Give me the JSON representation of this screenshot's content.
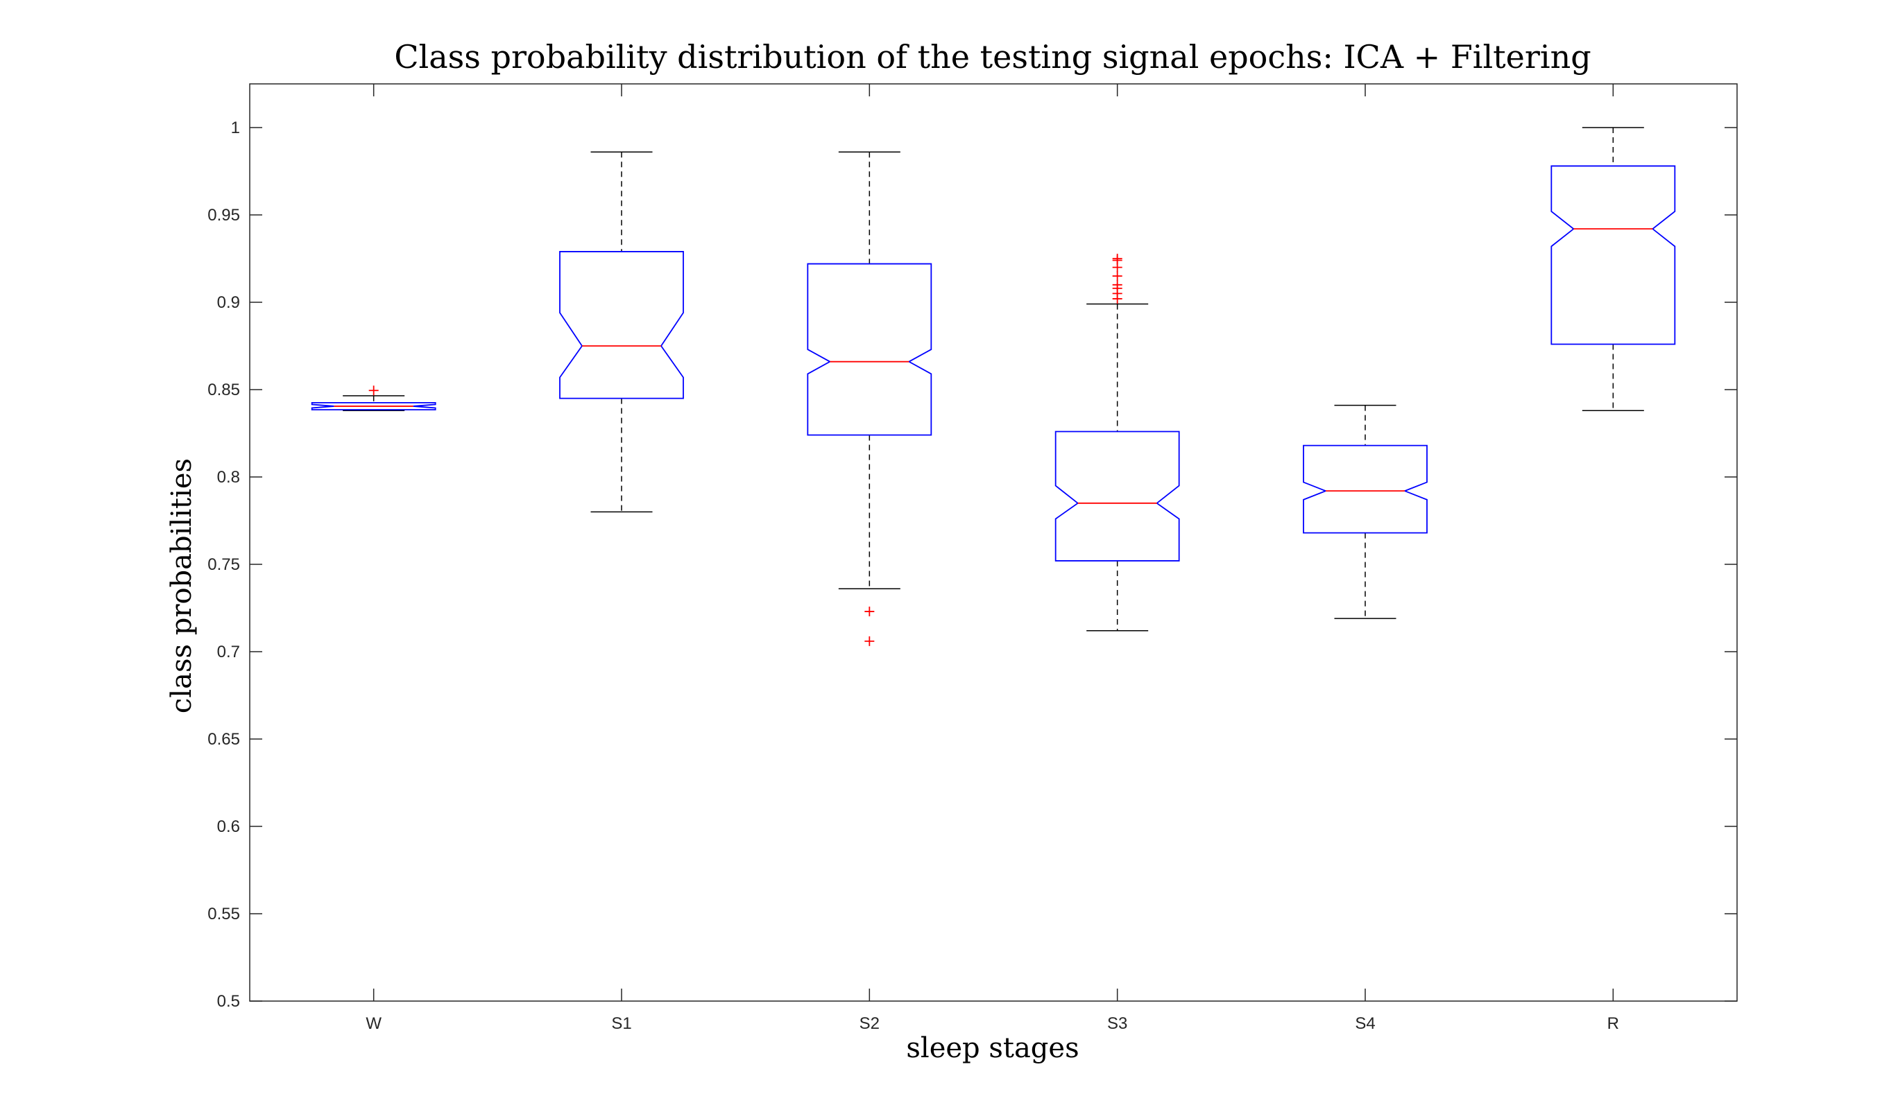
{
  "chart_data": {
    "type": "boxplot",
    "title": "Class probability distribution of the testing signal epochs: ICA + Filtering",
    "xlabel": "sleep stages",
    "ylabel": "class probabilities",
    "ylim": [
      0.5,
      1.025
    ],
    "yticks": [
      0.5,
      0.55,
      0.6,
      0.65,
      0.7,
      0.75,
      0.8,
      0.85,
      0.9,
      0.95,
      1
    ],
    "ytick_labels": [
      "0.5",
      "0.55",
      "0.6",
      "0.65",
      "0.7",
      "0.75",
      "0.8",
      "0.85",
      "0.9",
      "0.95",
      "1"
    ],
    "categories": [
      "W",
      "S1",
      "S2",
      "S3",
      "S4",
      "R"
    ],
    "notched": true,
    "grid": false,
    "colors": {
      "box": "#0000ff",
      "median": "#ff0000",
      "whisker": "#000000",
      "outlier": "#ff0000",
      "axis": "#262626"
    },
    "boxes": [
      {
        "category": "W",
        "whisker_low": 0.838,
        "q1": 0.8385,
        "notch_low": 0.8395,
        "median": 0.8405,
        "notch_high": 0.8415,
        "q3": 0.8425,
        "whisker_high": 0.8465,
        "outliers": [
          0.8495
        ]
      },
      {
        "category": "S1",
        "whisker_low": 0.78,
        "q1": 0.845,
        "notch_low": 0.857,
        "median": 0.875,
        "notch_high": 0.894,
        "q3": 0.929,
        "whisker_high": 0.986,
        "outliers": []
      },
      {
        "category": "S2",
        "whisker_low": 0.736,
        "q1": 0.824,
        "notch_low": 0.859,
        "median": 0.866,
        "notch_high": 0.873,
        "q3": 0.922,
        "whisker_high": 0.986,
        "outliers": [
          0.723,
          0.706
        ]
      },
      {
        "category": "S3",
        "whisker_low": 0.712,
        "q1": 0.752,
        "notch_low": 0.776,
        "median": 0.785,
        "notch_high": 0.795,
        "q3": 0.826,
        "whisker_high": 0.899,
        "outliers": [
          0.902,
          0.905,
          0.908,
          0.91,
          0.915,
          0.92,
          0.924,
          0.925
        ]
      },
      {
        "category": "S4",
        "whisker_low": 0.719,
        "q1": 0.768,
        "notch_low": 0.787,
        "median": 0.792,
        "notch_high": 0.797,
        "q3": 0.818,
        "whisker_high": 0.841,
        "outliers": []
      },
      {
        "category": "R",
        "whisker_low": 0.838,
        "q1": 0.876,
        "notch_low": 0.932,
        "median": 0.942,
        "notch_high": 0.952,
        "q3": 0.978,
        "whisker_high": 1.0,
        "outliers": []
      }
    ]
  }
}
